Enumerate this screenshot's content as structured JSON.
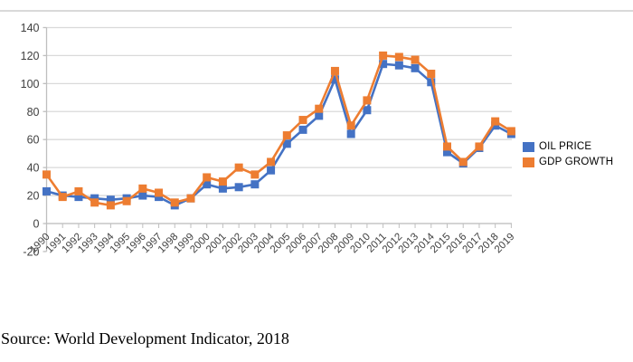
{
  "source_note": "Source: World Development Indicator, 2018",
  "colors": {
    "background": "#ffffff",
    "gridline": "#d9d9d9",
    "axis_line": "#bfbfbf",
    "tick_label": "#404040",
    "chart_border": "#d9d9d9",
    "oil_price": "#4472C4",
    "gdp_growth": "#ED7D31"
  },
  "chart_data": {
    "type": "line",
    "title": "",
    "xlabel": "",
    "ylabel": "",
    "x": [
      "1990",
      "1991",
      "1992",
      "1993",
      "1994",
      "1995",
      "1996",
      "1997",
      "1998",
      "1999",
      "2000",
      "2001",
      "2002",
      "2003",
      "2004",
      "2005",
      "2006",
      "2007",
      "2008",
      "2009",
      "2010",
      "2011",
      "2012",
      "2013",
      "2014",
      "2015",
      "2016",
      "2017",
      "2018",
      "2019"
    ],
    "series": [
      {
        "name": "OIL PRICE",
        "color": "#4472C4",
        "marker": "square",
        "values": [
          23,
          20,
          19,
          18,
          17,
          18,
          20,
          19,
          13,
          18,
          28,
          25,
          26,
          28,
          38,
          57,
          67,
          77,
          103,
          64,
          81,
          114,
          113,
          111,
          101,
          51,
          43,
          54,
          70,
          64
        ]
      },
      {
        "name": "GDP GROWTH",
        "color": "#ED7D31",
        "marker": "square",
        "values": [
          35,
          19,
          23,
          15,
          13,
          16,
          25,
          22,
          15,
          18,
          33,
          30,
          40,
          35,
          44,
          63,
          74,
          82,
          109,
          70,
          88,
          120,
          119,
          117,
          107,
          55,
          44,
          55,
          73,
          66
        ]
      }
    ],
    "ylim": [
      -20,
      140
    ],
    "ytick_interval": 20,
    "yticks": [
      -20,
      0,
      20,
      40,
      60,
      80,
      100,
      120,
      140
    ],
    "grid": true,
    "legend_position": "right"
  }
}
